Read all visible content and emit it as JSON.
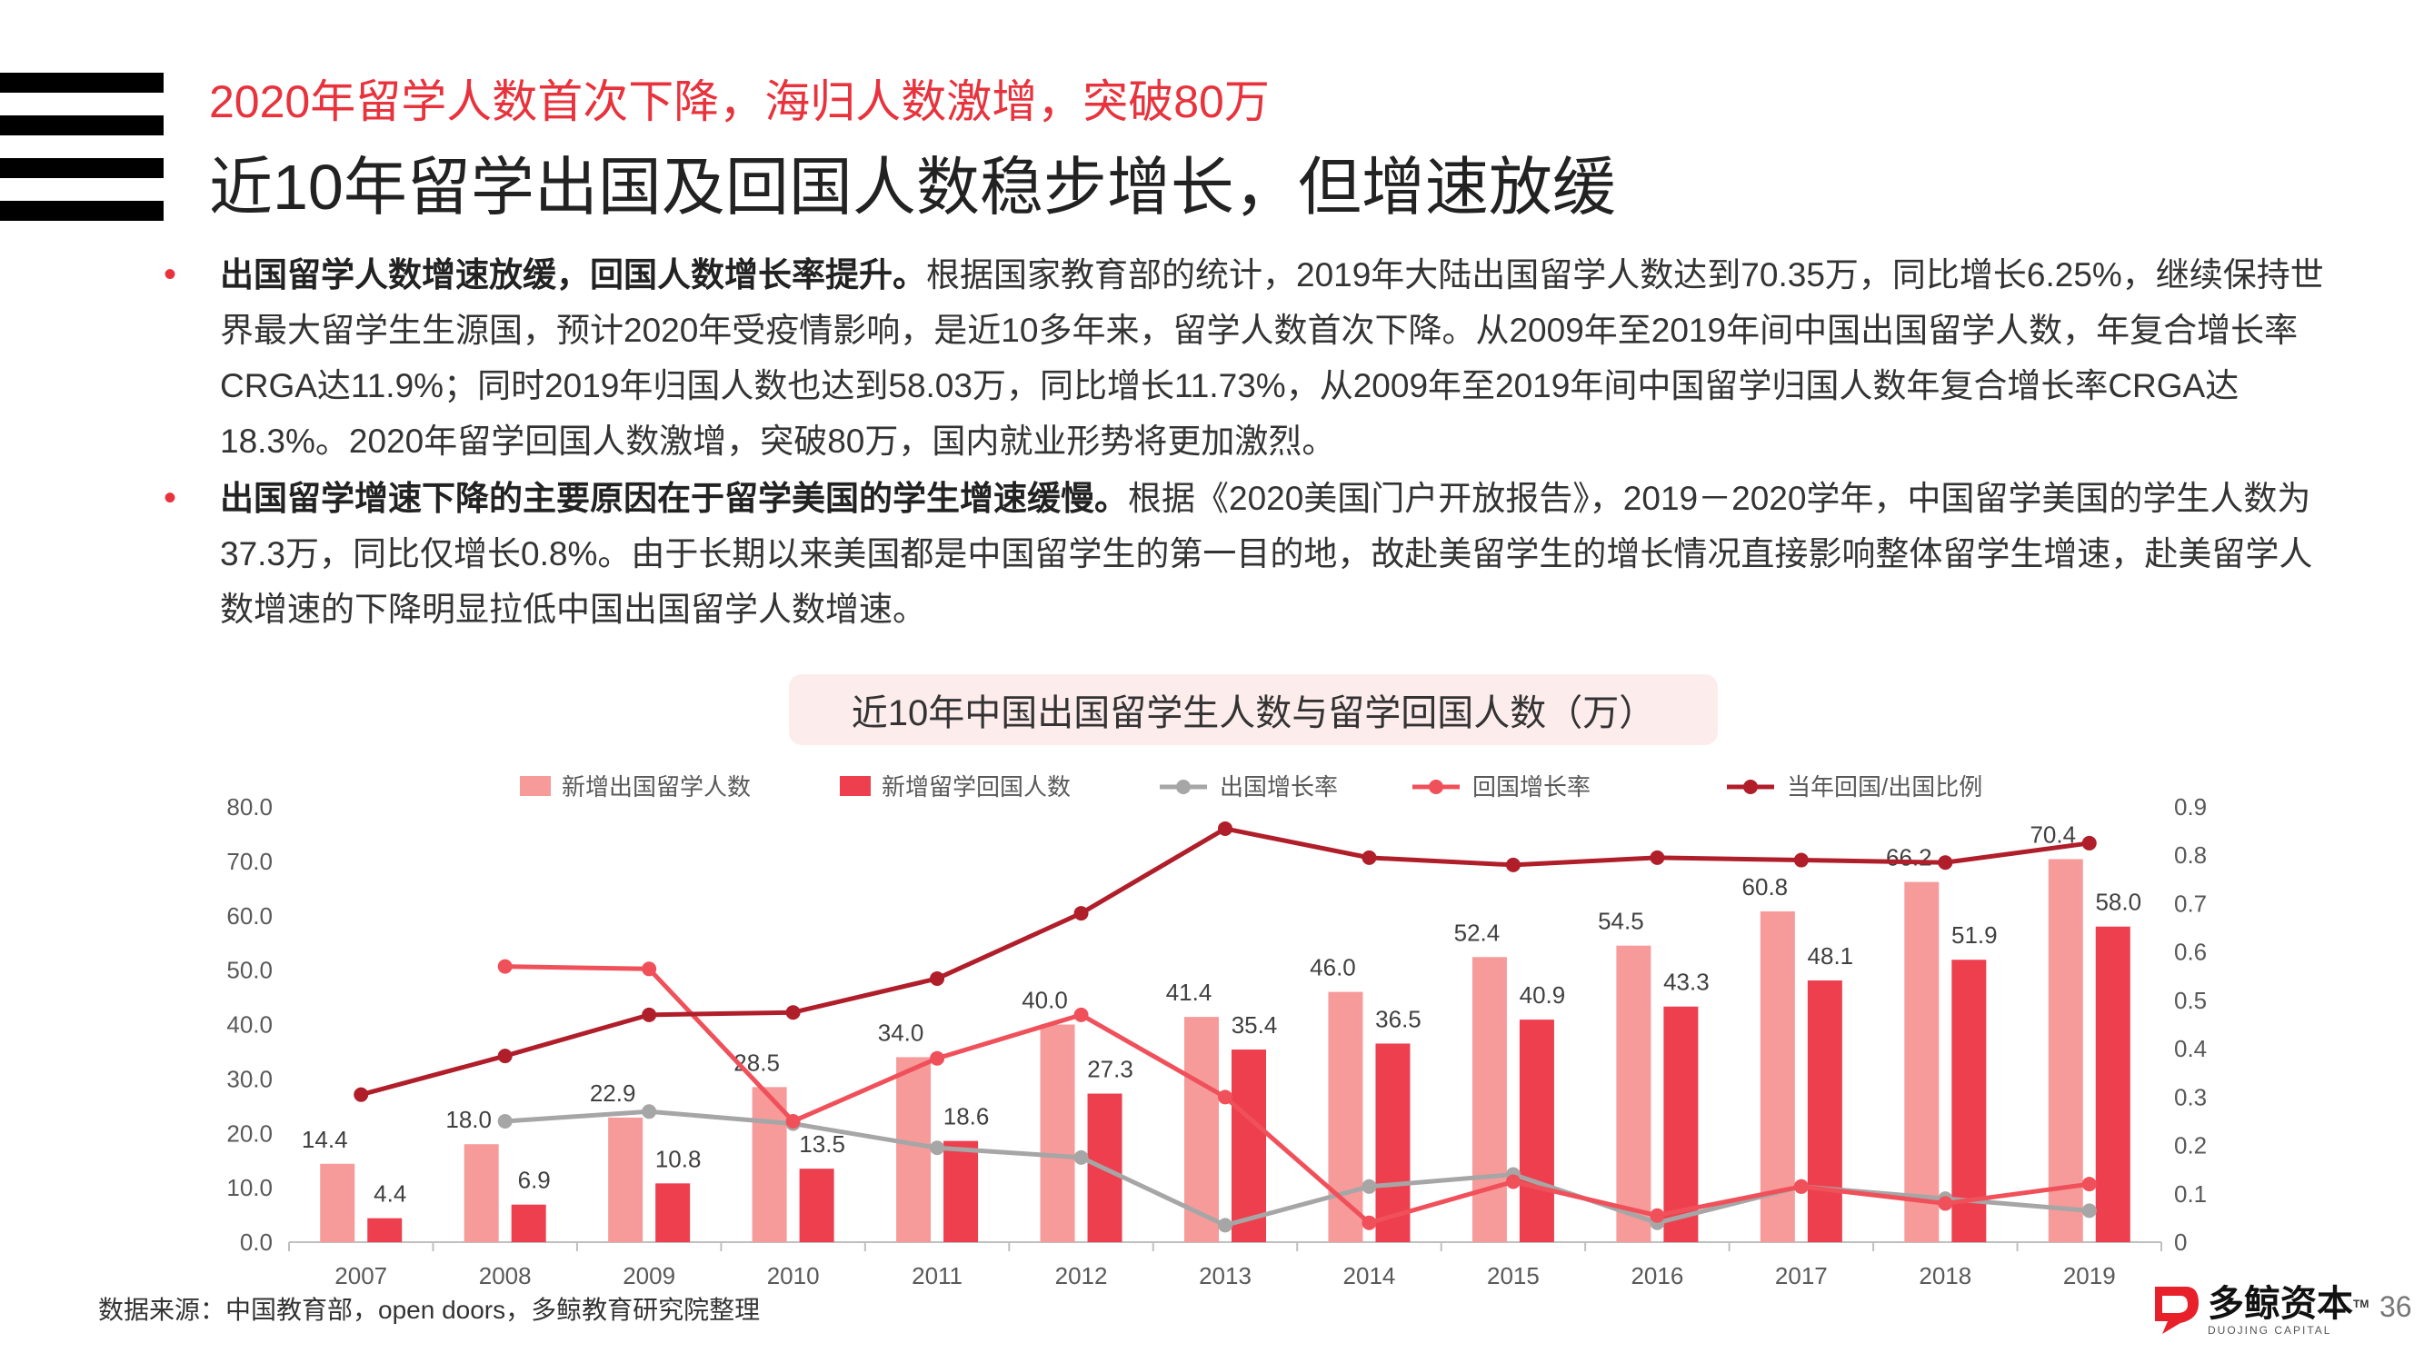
{
  "header": {
    "subtitle": "2020年留学人数首次下降，海归人数激增，突破80万",
    "title": "近10年留学出国及回国人数稳步增长，但增速放缓"
  },
  "bullets": [
    {
      "bold": "出国留学人数增速放缓，回国人数增长率提升。",
      "text": "根据国家教育部的统计，2019年大陆出国留学人数达到70.35万，同比增长6.25%，继续保持世界最大留学生生源国，预计2020年受疫情影响，是近10多年来，留学人数首次下降。从2009年至2019年间中国出国留学人数，年复合增长率CRGA达11.9%；同时2019年归国人数也达到58.03万，同比增长11.73%，从2009年至2019年间中国留学归国人数年复合增长率CRGA达18.3%。2020年留学回国人数激增，突破80万，国内就业形势将更加激烈。"
    },
    {
      "bold": "出国留学增速下降的主要原因在于留学美国的学生增速缓慢。",
      "text": "根据《2020美国门户开放报告》，2019－2020学年，中国留学美国的学生人数为37.3万，同比仅增长0.8%。由于长期以来美国都是中国留学生的第一目的地，故赴美留学生的增长情况直接影响整体留学生增速，赴美留学人数增速的下降明显拉低中国出国留学人数增速。"
    }
  ],
  "chart_data": {
    "type": "bar",
    "title": "近10年中国出国留学生人数与留学回国人数（万）",
    "categories": [
      "2007",
      "2008",
      "2009",
      "2010",
      "2011",
      "2012",
      "2013",
      "2014",
      "2015",
      "2016",
      "2017",
      "2018",
      "2019"
    ],
    "y_left": {
      "min": 0,
      "max": 80,
      "ticks": [
        "0.0",
        "10.0",
        "20.0",
        "30.0",
        "40.0",
        "50.0",
        "60.0",
        "70.0",
        "80.0"
      ]
    },
    "y_right": {
      "min": 0,
      "max": 0.9,
      "ticks": [
        "0",
        "0.1",
        "0.2",
        "0.3",
        "0.4",
        "0.5",
        "0.6",
        "0.7",
        "0.8",
        "0.9"
      ]
    },
    "legend_position": "top",
    "series": [
      {
        "name": "新增出国留学人数",
        "kind": "bar",
        "axis": "left",
        "color": "#f79a9a",
        "values": [
          14.4,
          18.0,
          22.9,
          28.5,
          34.0,
          40.0,
          41.4,
          46.0,
          52.4,
          54.5,
          60.8,
          66.2,
          70.4
        ],
        "labels": [
          "14.4",
          "18.0",
          "22.9",
          "28.5",
          "34.0",
          "40.0",
          "41.4",
          "46.0",
          "52.4",
          "54.5",
          "60.8",
          "66.2",
          "70.4"
        ]
      },
      {
        "name": "新增留学回国人数",
        "kind": "bar",
        "axis": "left",
        "color": "#ee3f4f",
        "values": [
          4.4,
          6.9,
          10.8,
          13.5,
          18.6,
          27.3,
          35.4,
          36.5,
          40.9,
          43.3,
          48.1,
          51.9,
          58.0
        ],
        "labels": [
          "4.4",
          "6.9",
          "10.8",
          "13.5",
          "18.6",
          "27.3",
          "35.4",
          "36.5",
          "40.9",
          "43.3",
          "48.1",
          "51.9",
          "58.0"
        ]
      },
      {
        "name": "出国增长率",
        "kind": "line",
        "axis": "right",
        "color": "#a6a6a6",
        "values": [
          null,
          0.25,
          0.27,
          0.245,
          0.195,
          0.175,
          0.035,
          0.115,
          0.14,
          0.04,
          0.115,
          0.09,
          0.065
        ]
      },
      {
        "name": "回国增长率",
        "kind": "line",
        "axis": "right",
        "color": "#f0505a",
        "values": [
          null,
          0.57,
          0.565,
          0.25,
          0.38,
          0.47,
          0.3,
          0.04,
          0.125,
          0.055,
          0.115,
          0.08,
          0.12
        ]
      },
      {
        "name": "当年回国/出国比例",
        "kind": "line",
        "axis": "right",
        "color": "#b01e2a",
        "values": [
          0.305,
          0.385,
          0.47,
          0.475,
          0.545,
          0.68,
          0.855,
          0.795,
          0.78,
          0.795,
          0.79,
          0.785,
          0.825
        ]
      }
    ]
  },
  "footer": {
    "source": "数据来源：中国教育部，open doors，多鲸教育研究院整理",
    "logo_cn": "多鲸资本",
    "logo_en": "DUOJING CAPITAL",
    "logo_tm": "TM",
    "page": "36"
  }
}
